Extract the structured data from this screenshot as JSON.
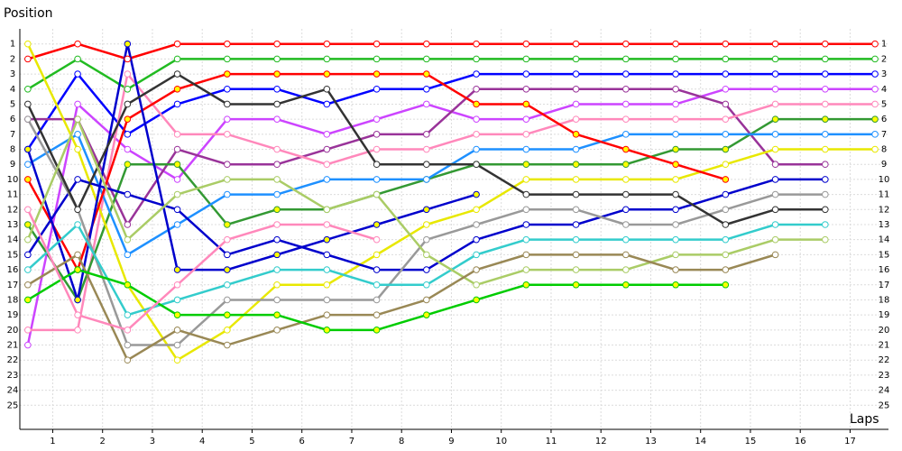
{
  "chart_data": {
    "type": "line",
    "y_label": "Position",
    "x_label": "Laps",
    "x": [
      0,
      1,
      2,
      3,
      4,
      5,
      6,
      7,
      8,
      9,
      10,
      11,
      12,
      13,
      14,
      15,
      16,
      17
    ],
    "xlim": [
      -0.16,
      17.27
    ],
    "xticks": [
      {
        "value": 0.5,
        "label": "1"
      },
      {
        "value": 1.5,
        "label": "2"
      },
      {
        "value": 2.5,
        "label": "3"
      },
      {
        "value": 3.5,
        "label": "4"
      },
      {
        "value": 4.5,
        "label": "5"
      },
      {
        "value": 5.5,
        "label": "6"
      },
      {
        "value": 6.5,
        "label": "7"
      },
      {
        "value": 7.5,
        "label": "8"
      },
      {
        "value": 8.5,
        "label": "9"
      },
      {
        "value": 9.5,
        "label": "10"
      },
      {
        "value": 10.5,
        "label": "11"
      },
      {
        "value": 11.5,
        "label": "12"
      },
      {
        "value": 12.5,
        "label": "13"
      },
      {
        "value": 13.5,
        "label": "14"
      },
      {
        "value": 14.5,
        "label": "15"
      },
      {
        "value": 15.5,
        "label": "16"
      },
      {
        "value": 16.5,
        "label": "17"
      }
    ],
    "ylim": [
      26.6,
      0
    ],
    "yticks": [
      1,
      2,
      3,
      4,
      5,
      6,
      7,
      8,
      9,
      10,
      11,
      12,
      13,
      14,
      15,
      16,
      17,
      18,
      19,
      20,
      21,
      22,
      23,
      24,
      25
    ],
    "grid": true,
    "series": [
      {
        "color": "#ff0000",
        "marker": "#ffffff",
        "values": [
          2,
          1,
          2,
          1,
          1,
          1,
          1,
          1,
          1,
          1,
          1,
          1,
          1,
          1,
          1,
          1,
          1,
          1
        ]
      },
      {
        "color": "#22bb22",
        "marker": "#ffffff",
        "values": [
          4,
          2,
          4,
          2,
          2,
          2,
          2,
          2,
          2,
          2,
          2,
          2,
          2,
          2,
          2,
          2,
          2,
          2
        ]
      },
      {
        "color": "#0000ff",
        "marker": "#ffffff",
        "values": [
          8,
          3,
          7,
          5,
          4,
          4,
          5,
          4,
          4,
          3,
          3,
          3,
          3,
          3,
          3,
          3,
          3,
          3
        ]
      },
      {
        "color": "#cc44ff",
        "marker": "#ffffff",
        "values": [
          21,
          5,
          8,
          10,
          6,
          6,
          7,
          6,
          5,
          6,
          6,
          5,
          5,
          5,
          4,
          4,
          4,
          4
        ]
      },
      {
        "color": "#993399",
        "marker": "#ffffff",
        "values": [
          6,
          6,
          13,
          8,
          9,
          9,
          8,
          7,
          7,
          4,
          4,
          4,
          4,
          4,
          5,
          9,
          9,
          null
        ]
      },
      {
        "color": "#ff88bb",
        "marker": "#ffffff",
        "values": [
          20,
          20,
          3,
          7,
          7,
          8,
          9,
          8,
          8,
          7,
          7,
          6,
          6,
          6,
          6,
          5,
          5,
          5
        ]
      },
      {
        "color": "#339933",
        "marker": "#ffff00",
        "values": [
          13,
          18,
          9,
          9,
          13,
          12,
          12,
          11,
          10,
          9,
          9,
          9,
          9,
          8,
          8,
          6,
          6,
          6
        ]
      },
      {
        "color": "#1e90ff",
        "marker": "#ffffff",
        "values": [
          9,
          7,
          15,
          13,
          11,
          11,
          10,
          10,
          10,
          8,
          8,
          8,
          7,
          7,
          7,
          7,
          7,
          7
        ]
      },
      {
        "color": "#e8e800",
        "marker": "#ffffff",
        "values": [
          1,
          8,
          17,
          22,
          20,
          17,
          17,
          15,
          13,
          12,
          10,
          10,
          10,
          10,
          9,
          8,
          8,
          8
        ]
      },
      {
        "color": "#ff0000",
        "marker": "#ffff00",
        "values": [
          10,
          16,
          6,
          4,
          3,
          3,
          3,
          3,
          3,
          5,
          5,
          7,
          8,
          9,
          10,
          null,
          null,
          null
        ]
      },
      {
        "color": "#0000cc",
        "marker": "#ffffff",
        "values": [
          15,
          10,
          11,
          12,
          15,
          14,
          15,
          16,
          16,
          14,
          13,
          13,
          12,
          12,
          11,
          10,
          10,
          null
        ]
      },
      {
        "color": "#0000cc",
        "marker": "#ffff00",
        "values": [
          8,
          18,
          1,
          16,
          16,
          15,
          14,
          13,
          12,
          11,
          null,
          null,
          null,
          null,
          null,
          null,
          null,
          null
        ]
      },
      {
        "color": "#999999",
        "marker": "#ffffff",
        "values": [
          6,
          12,
          21,
          21,
          18,
          18,
          18,
          18,
          14,
          13,
          12,
          12,
          13,
          13,
          12,
          11,
          11,
          null
        ]
      },
      {
        "color": "#333333",
        "marker": "#ffffff",
        "values": [
          5,
          12,
          5,
          3,
          5,
          5,
          4,
          9,
          9,
          9,
          11,
          11,
          11,
          11,
          13,
          12,
          12,
          null
        ]
      },
      {
        "color": "#33cccc",
        "marker": "#ffffff",
        "values": [
          16,
          13,
          19,
          18,
          17,
          16,
          16,
          17,
          17,
          15,
          14,
          14,
          14,
          14,
          14,
          13,
          13,
          null
        ]
      },
      {
        "color": "#aacc66",
        "marker": "#ffffff",
        "values": [
          14,
          6,
          14,
          11,
          10,
          10,
          12,
          11,
          15,
          17,
          16,
          16,
          16,
          15,
          15,
          14,
          14,
          null
        ]
      },
      {
        "color": "#998855",
        "marker": "#ffffff",
        "values": [
          17,
          15,
          22,
          20,
          21,
          20,
          19,
          19,
          18,
          16,
          15,
          15,
          15,
          16,
          16,
          15,
          null,
          null
        ]
      },
      {
        "color": "#00cc00",
        "marker": "#ffff00",
        "values": [
          18,
          16,
          17,
          19,
          19,
          19,
          20,
          20,
          19,
          18,
          17,
          17,
          17,
          17,
          17,
          null,
          null,
          null
        ]
      },
      {
        "color": "#ff88bb",
        "marker": "#ffffff",
        "values": [
          12,
          19,
          20,
          17,
          14,
          13,
          13,
          14,
          null,
          null,
          null,
          null,
          null,
          null,
          null,
          null,
          null,
          null
        ]
      }
    ]
  }
}
